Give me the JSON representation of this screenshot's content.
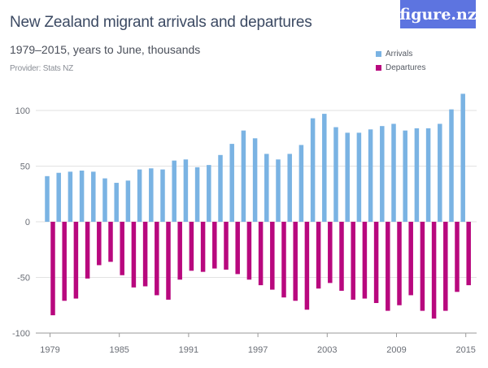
{
  "brand": {
    "logo_text": "figure.nz",
    "logo_color": "#5d74e0"
  },
  "chart_data": {
    "type": "bar",
    "title": "New Zealand migrant arrivals and departures",
    "subtitle": "1979–2015, years to June, thousands",
    "provider": "Provider: Stats NZ",
    "xlabel": "",
    "ylabel": "",
    "ylim": [
      -100,
      120
    ],
    "yticks": [
      100,
      50,
      0,
      -50,
      -100
    ],
    "ytick_labels": [
      "100",
      "50",
      "0",
      "-50",
      "-100"
    ],
    "xtick_labels": [
      "1979",
      "1985",
      "1991",
      "1997",
      "2003",
      "2009",
      "2015"
    ],
    "grid": true,
    "legend_position": "top-right",
    "categories": [
      "1979",
      "1980",
      "1981",
      "1982",
      "1983",
      "1984",
      "1985",
      "1986",
      "1987",
      "1988",
      "1989",
      "1990",
      "1991",
      "1992",
      "1993",
      "1994",
      "1995",
      "1996",
      "1997",
      "1998",
      "1999",
      "2000",
      "2001",
      "2002",
      "2003",
      "2004",
      "2005",
      "2006",
      "2007",
      "2008",
      "2009",
      "2010",
      "2011",
      "2012",
      "2013",
      "2014",
      "2015"
    ],
    "series": [
      {
        "name": "Arrivals",
        "color": "#7ab3e3",
        "values": [
          41,
          44,
          45,
          46,
          45,
          39,
          35,
          37,
          47,
          48,
          47,
          55,
          56,
          49,
          51,
          60,
          70,
          82,
          75,
          61,
          56,
          61,
          69,
          93,
          97,
          85,
          80,
          80,
          83,
          86,
          88,
          82,
          84,
          84,
          88,
          101,
          115
        ]
      },
      {
        "name": "Departures",
        "color": "#b8087e",
        "values": [
          -84,
          -71,
          -69,
          -51,
          -39,
          -36,
          -48,
          -59,
          -58,
          -66,
          -70,
          -52,
          -44,
          -45,
          -42,
          -43,
          -47,
          -52,
          -57,
          -61,
          -68,
          -71,
          -79,
          -60,
          -55,
          -62,
          -70,
          -69,
          -73,
          -80,
          -75,
          -66,
          -80,
          -87,
          -80,
          -63,
          -57
        ]
      }
    ]
  }
}
